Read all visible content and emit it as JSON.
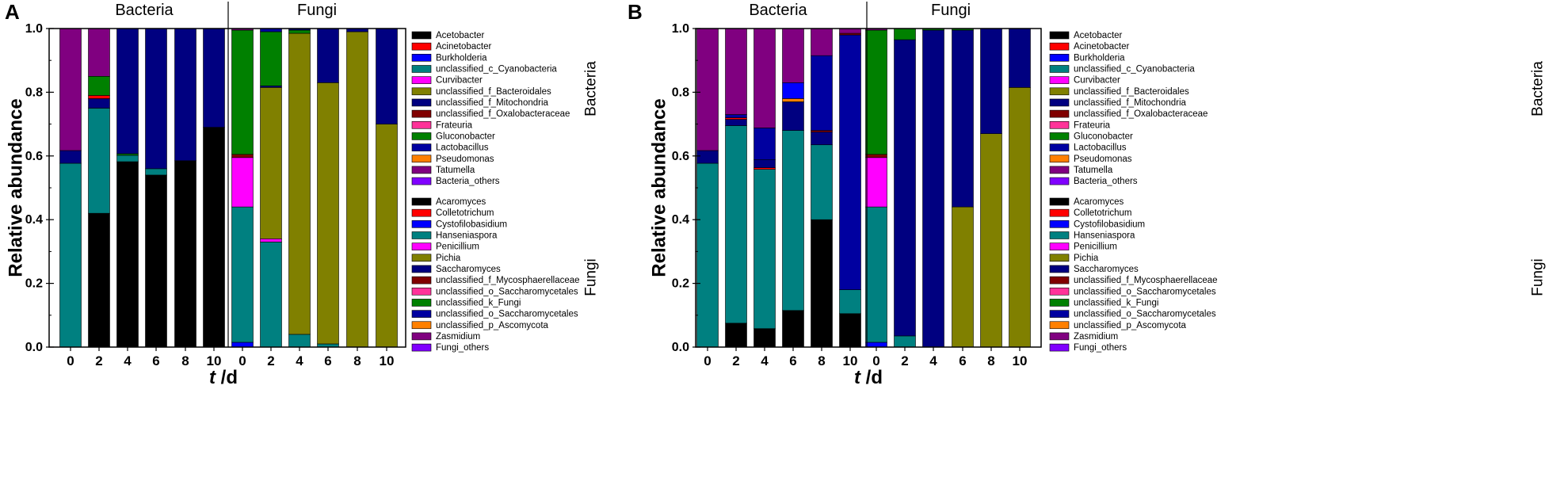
{
  "chart_data": {
    "type": "bar",
    "stacked": true,
    "xlabel_prefix": "t",
    "xlabel_suffix": " /d",
    "ylabel": "Relative abundance",
    "ylim": [
      0,
      1.0
    ],
    "yticks": [
      "0.0",
      "0.2",
      "0.4",
      "0.6",
      "0.8",
      "1.0"
    ],
    "groups": [
      "Bacteria",
      "Fungi"
    ],
    "side_labels": [
      "Bacteria",
      "Fungi"
    ],
    "legend_bacteria": [
      {
        "name": "Acetobacter",
        "color": "#000000"
      },
      {
        "name": "Acinetobacter",
        "color": "#ff0000"
      },
      {
        "name": "Burkholderia",
        "color": "#0000ff"
      },
      {
        "name": "unclassified_c_Cyanobacteria",
        "color": "#008080"
      },
      {
        "name": "Curvibacter",
        "color": "#ff00ff"
      },
      {
        "name": "unclassified_f_Bacteroidales",
        "color": "#808000"
      },
      {
        "name": "unclassified_f_Mitochondria",
        "color": "#000080"
      },
      {
        "name": "unclassified_f_Oxalobacteraceae",
        "color": "#800000"
      },
      {
        "name": "Frateuria",
        "color": "#ff3399"
      },
      {
        "name": "Gluconobacter",
        "color": "#008000"
      },
      {
        "name": "Lactobacillus",
        "color": "#0000a0"
      },
      {
        "name": "Pseudomonas",
        "color": "#ff8000"
      },
      {
        "name": "Tatumella",
        "color": "#800080"
      },
      {
        "name": "Bacteria_others",
        "color": "#8000ff"
      }
    ],
    "legend_fungi": [
      {
        "name": "Acaromyces",
        "color": "#000000"
      },
      {
        "name": "Colletotrichum",
        "color": "#ff0000"
      },
      {
        "name": "Cystofilobasidium",
        "color": "#0000ff"
      },
      {
        "name": "Hanseniaspora",
        "color": "#008080"
      },
      {
        "name": "Penicillium",
        "color": "#ff00ff"
      },
      {
        "name": "Pichia",
        "color": "#808000"
      },
      {
        "name": "Saccharomyces",
        "color": "#000080"
      },
      {
        "name": "unclassified_f_Mycosphaerellaceae",
        "color": "#800000"
      },
      {
        "name": "unclassified_o_Saccharomycetales",
        "color": "#ff3399"
      },
      {
        "name": "unclassified_k_Fungi",
        "color": "#008000"
      },
      {
        "name": "unclassified_o_Saccharomycetales",
        "color": "#0000a0"
      },
      {
        "name": "unclassified_p_Ascomycota",
        "color": "#ff8000"
      },
      {
        "name": "Zasmidium",
        "color": "#800080"
      },
      {
        "name": "Fungi_others",
        "color": "#8000ff"
      }
    ],
    "panels": [
      {
        "letter": "A",
        "categories": [
          "0",
          "2",
          "4",
          "6",
          "8",
          "10",
          "0",
          "2",
          "4",
          "6",
          "8",
          "10"
        ],
        "bars": [
          [
            [
              "#008080",
              0.577
            ],
            [
              "#000080",
              0.04
            ],
            [
              "#800080",
              0.383
            ]
          ],
          [
            [
              "#000000",
              0.42
            ],
            [
              "#008080",
              0.33
            ],
            [
              "#000080",
              0.03
            ],
            [
              "#ff0000",
              0.01
            ],
            [
              "#008000",
              0.06
            ],
            [
              "#800080",
              0.15
            ]
          ],
          [
            [
              "#000000",
              0.582
            ],
            [
              "#008080",
              0.02
            ],
            [
              "#008000",
              0.005
            ],
            [
              "#000080",
              0.393
            ]
          ],
          [
            [
              "#000000",
              0.54
            ],
            [
              "#008080",
              0.02
            ],
            [
              "#000080",
              0.44
            ]
          ],
          [
            [
              "#000000",
              0.585
            ],
            [
              "#000080",
              0.415
            ]
          ],
          [
            [
              "#000000",
              0.69
            ],
            [
              "#000080",
              0.31
            ]
          ],
          [
            [
              "#0000ff",
              0.015
            ],
            [
              "#008080",
              0.425
            ],
            [
              "#ff00ff",
              0.155
            ],
            [
              "#800000",
              0.01
            ],
            [
              "#008000",
              0.39
            ],
            [
              "#800080",
              0.005
            ]
          ],
          [
            [
              "#008080",
              0.33
            ],
            [
              "#ff00ff",
              0.01
            ],
            [
              "#808000",
              0.475
            ],
            [
              "#000080",
              0.005
            ],
            [
              "#008000",
              0.17
            ],
            [
              "#0000a0",
              0.01
            ]
          ],
          [
            [
              "#008080",
              0.04
            ],
            [
              "#808000",
              0.945
            ],
            [
              "#008000",
              0.01
            ],
            [
              "#000080",
              0.005
            ]
          ],
          [
            [
              "#008080",
              0.01
            ],
            [
              "#808000",
              0.82
            ],
            [
              "#000080",
              0.17
            ]
          ],
          [
            [
              "#808000",
              0.99
            ],
            [
              "#000080",
              0.01
            ]
          ],
          [
            [
              "#808000",
              0.7
            ],
            [
              "#000080",
              0.3
            ]
          ]
        ]
      },
      {
        "letter": "B",
        "categories": [
          "0",
          "2",
          "4",
          "6",
          "8",
          "10",
          "0",
          "2",
          "4",
          "6",
          "8",
          "10"
        ],
        "bars": [
          [
            [
              "#008080",
              0.577
            ],
            [
              "#000080",
              0.04
            ],
            [
              "#800080",
              0.383
            ]
          ],
          [
            [
              "#000000",
              0.075
            ],
            [
              "#008080",
              0.62
            ],
            [
              "#000080",
              0.02
            ],
            [
              "#ff0000",
              0.005
            ],
            [
              "#0000a0",
              0.01
            ],
            [
              "#800080",
              0.27
            ]
          ],
          [
            [
              "#000000",
              0.058
            ],
            [
              "#008080",
              0.5
            ],
            [
              "#ff0000",
              0.005
            ],
            [
              "#000080",
              0.025
            ],
            [
              "#0000a0",
              0.1
            ],
            [
              "#800080",
              0.312
            ]
          ],
          [
            [
              "#000000",
              0.115
            ],
            [
              "#008080",
              0.565
            ],
            [
              "#000080",
              0.09
            ],
            [
              "#ff8000",
              0.01
            ],
            [
              "#0000ff",
              0.05
            ],
            [
              "#800080",
              0.17
            ]
          ],
          [
            [
              "#000000",
              0.4
            ],
            [
              "#008080",
              0.235
            ],
            [
              "#000080",
              0.04
            ],
            [
              "#800000",
              0.005
            ],
            [
              "#0000a0",
              0.235
            ],
            [
              "#800080",
              0.085
            ]
          ],
          [
            [
              "#000000",
              0.105
            ],
            [
              "#008080",
              0.075
            ],
            [
              "#0000a0",
              0.8
            ],
            [
              "#800000",
              0.005
            ],
            [
              "#800080",
              0.015
            ]
          ],
          [
            [
              "#0000ff",
              0.015
            ],
            [
              "#008080",
              0.425
            ],
            [
              "#ff00ff",
              0.155
            ],
            [
              "#800000",
              0.01
            ],
            [
              "#008000",
              0.39
            ],
            [
              "#800080",
              0.005
            ]
          ],
          [
            [
              "#008080",
              0.035
            ],
            [
              "#000080",
              0.93
            ],
            [
              "#008000",
              0.035
            ]
          ],
          [
            [
              "#000080",
              0.995
            ],
            [
              "#008000",
              0.005
            ]
          ],
          [
            [
              "#808000",
              0.44
            ],
            [
              "#000080",
              0.555
            ],
            [
              "#008000",
              0.005
            ]
          ],
          [
            [
              "#808000",
              0.67
            ],
            [
              "#000080",
              0.33
            ]
          ],
          [
            [
              "#808000",
              0.815
            ],
            [
              "#000080",
              0.185
            ]
          ]
        ]
      }
    ]
  }
}
